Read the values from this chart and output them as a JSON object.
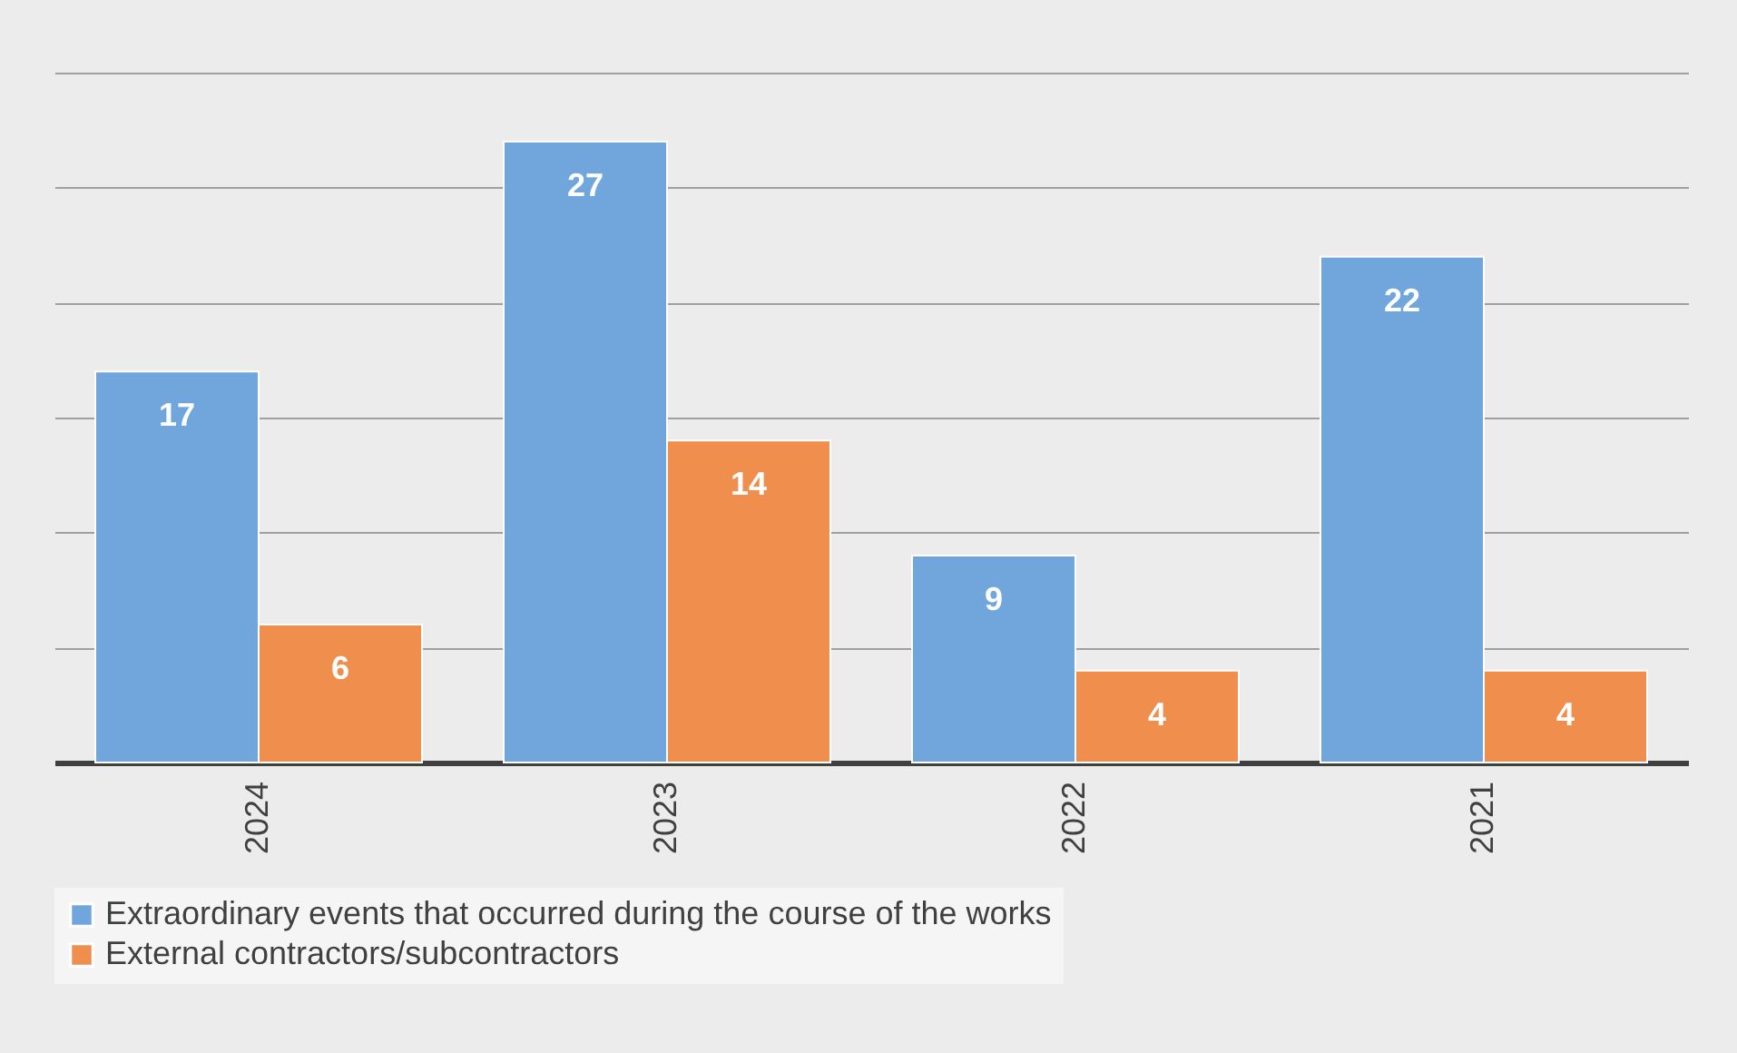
{
  "chart_data": {
    "type": "bar",
    "categories": [
      "2024",
      "2023",
      "2022",
      "2021"
    ],
    "series": [
      {
        "name": "Extraordinary events that occurred during the course of the works",
        "color": "#70a6dc",
        "values": [
          17,
          27,
          9,
          22
        ]
      },
      {
        "name": "External contractors/subcontractors",
        "color": "#ef8e4d",
        "values": [
          6,
          14,
          4,
          4
        ]
      }
    ],
    "ylim": [
      0,
      30
    ],
    "yticks": [
      {
        "value": 0,
        "label": null
      },
      {
        "value": 5,
        "label": null
      },
      {
        "value": 10,
        "label": null
      },
      {
        "value": 15,
        "label": null
      },
      {
        "value": 20,
        "label": null
      },
      {
        "value": 25,
        "label": null
      },
      {
        "value": 30,
        "label": null
      }
    ],
    "tick_labels": "x",
    "grid": "y",
    "legend": "bottom",
    "data_labels": true
  }
}
